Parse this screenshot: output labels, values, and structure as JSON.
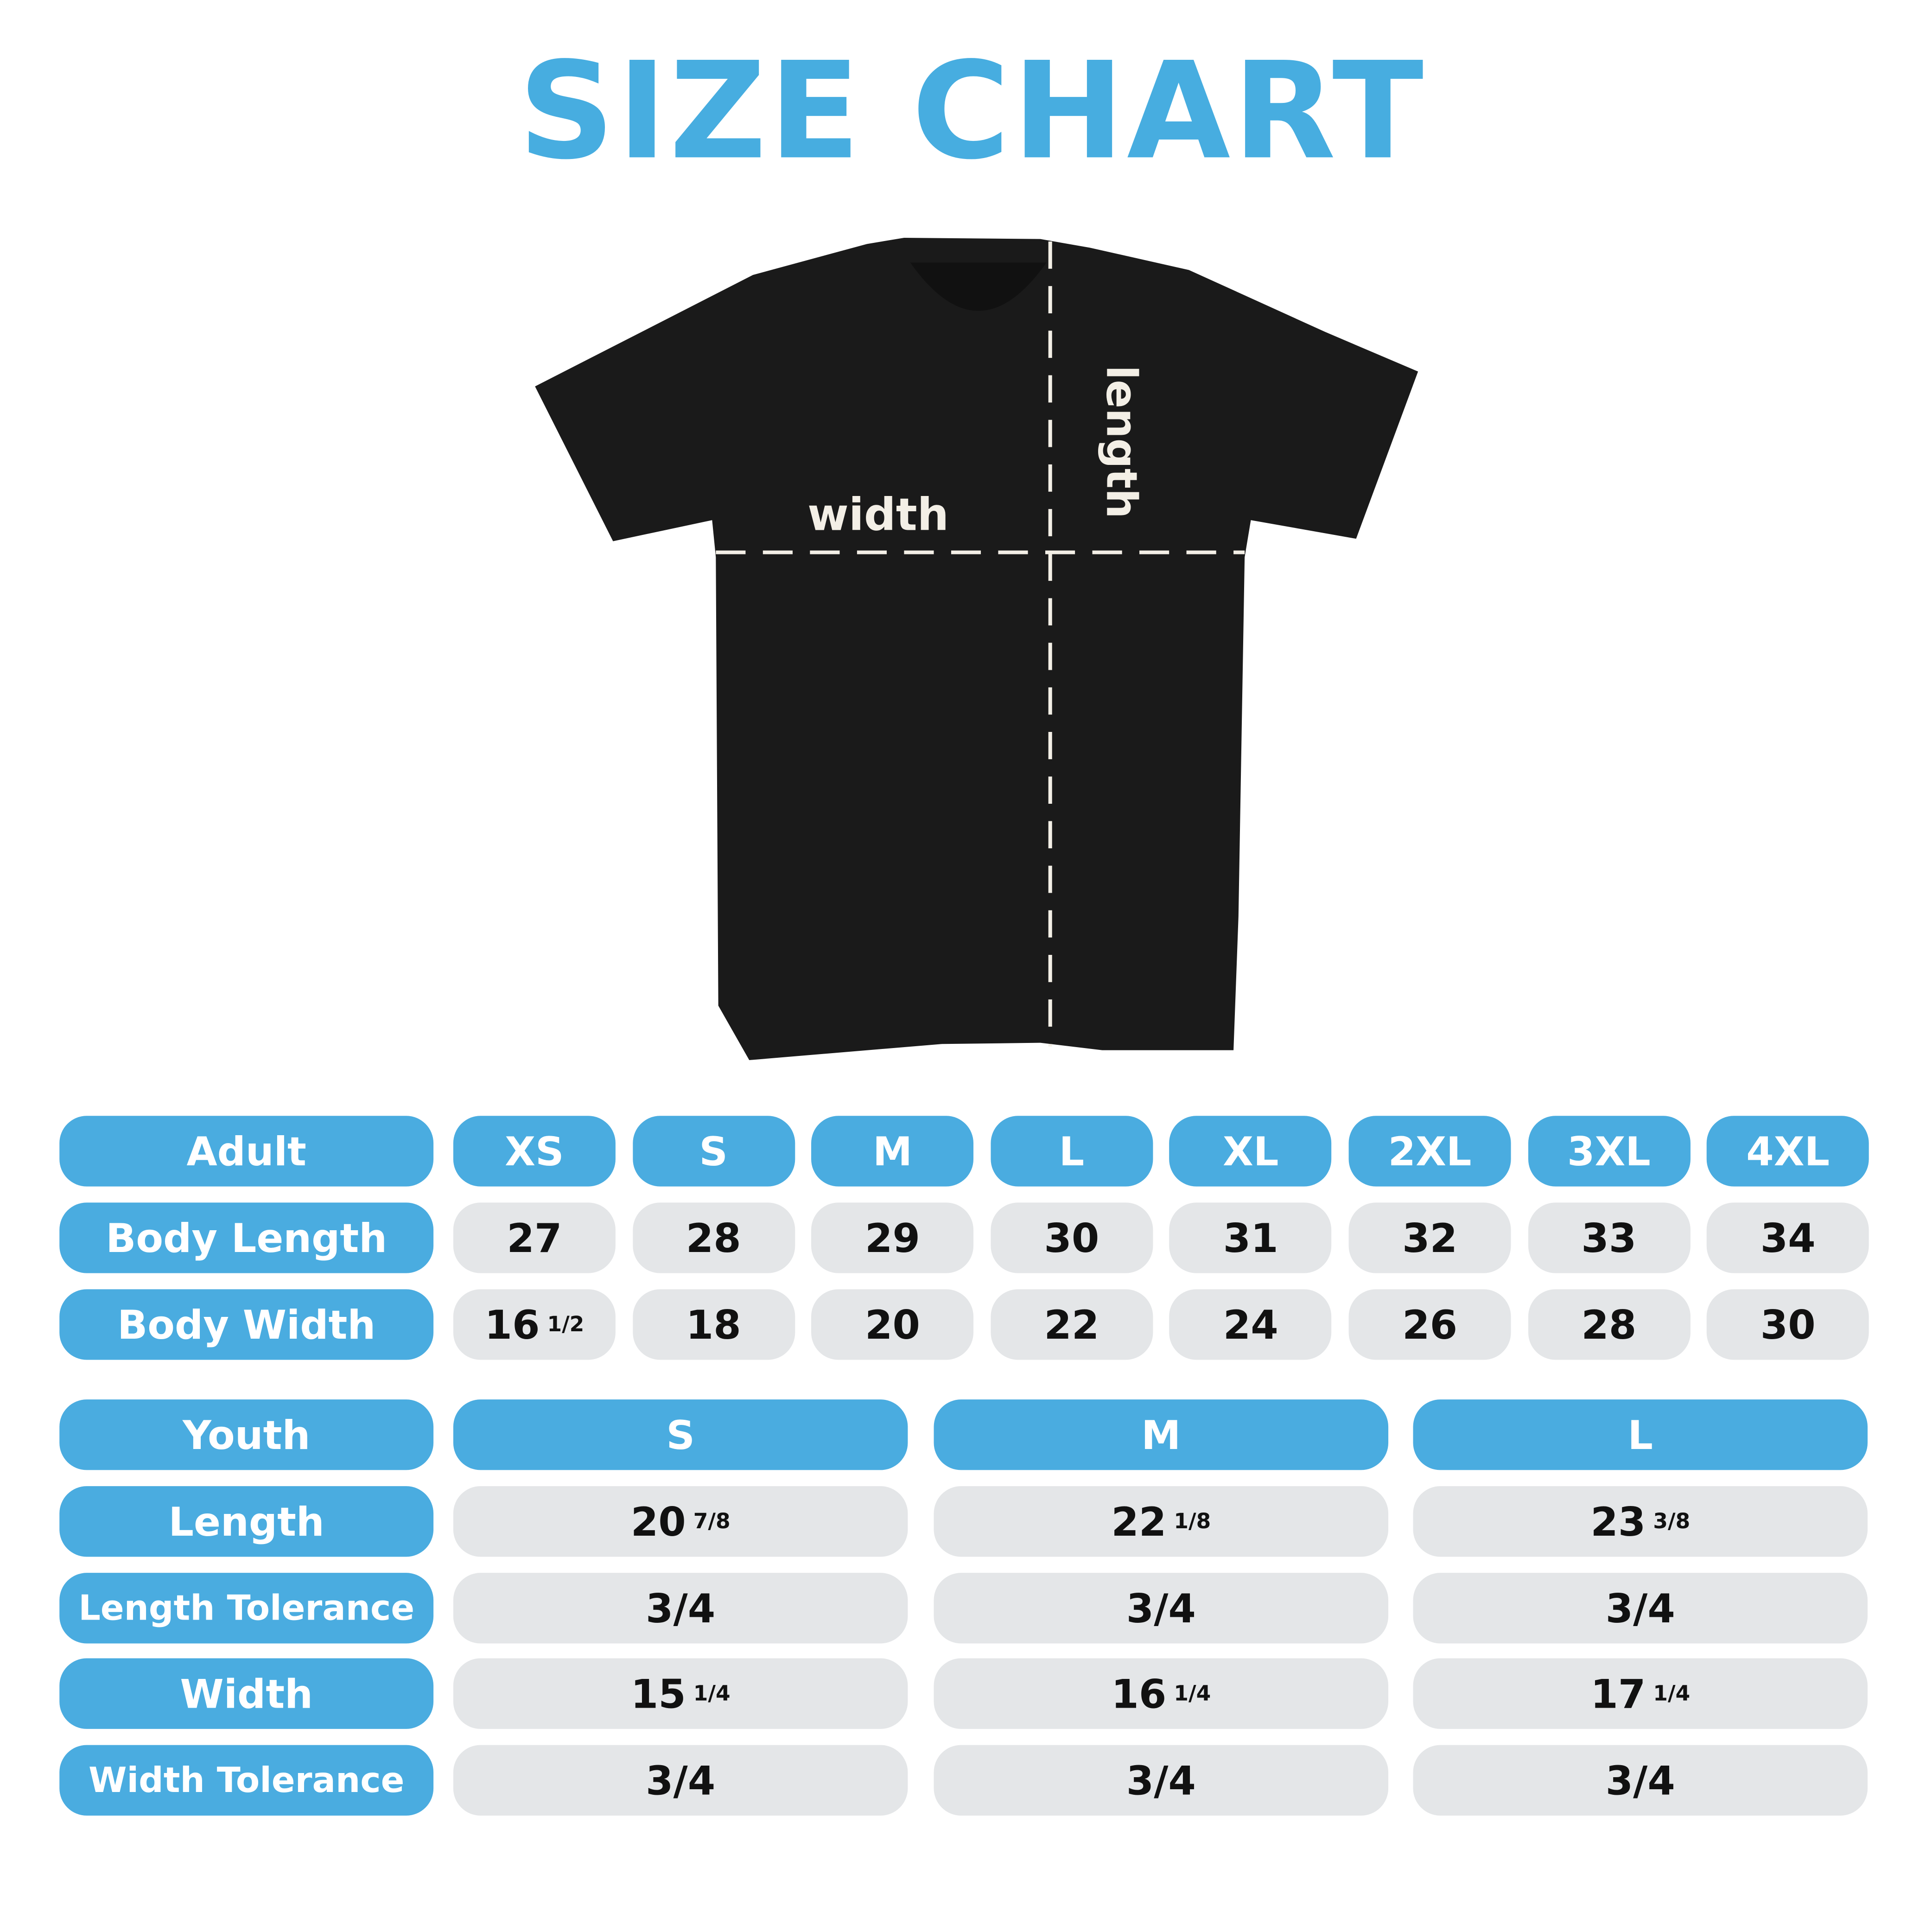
{
  "title": "SIZE CHART",
  "diagram": {
    "width_label": "width",
    "length_label": "length",
    "shirt_color": "#1a1a1a"
  },
  "colors": {
    "accent": "#4aace0",
    "cell": "#e4e6e8"
  },
  "adult": {
    "header": "Adult",
    "sizes": [
      "XS",
      "S",
      "M",
      "L",
      "XL",
      "2XL",
      "3XL",
      "4XL"
    ],
    "rows": [
      {
        "label": "Body Length",
        "values": [
          {
            "whole": "27",
            "frac": ""
          },
          {
            "whole": "28",
            "frac": ""
          },
          {
            "whole": "29",
            "frac": ""
          },
          {
            "whole": "30",
            "frac": ""
          },
          {
            "whole": "31",
            "frac": ""
          },
          {
            "whole": "32",
            "frac": ""
          },
          {
            "whole": "33",
            "frac": ""
          },
          {
            "whole": "34",
            "frac": ""
          }
        ]
      },
      {
        "label": "Body Width",
        "values": [
          {
            "whole": "16",
            "frac": "1/2"
          },
          {
            "whole": "18",
            "frac": ""
          },
          {
            "whole": "20",
            "frac": ""
          },
          {
            "whole": "22",
            "frac": ""
          },
          {
            "whole": "24",
            "frac": ""
          },
          {
            "whole": "26",
            "frac": ""
          },
          {
            "whole": "28",
            "frac": ""
          },
          {
            "whole": "30",
            "frac": ""
          }
        ]
      }
    ]
  },
  "youth": {
    "header": "Youth",
    "sizes": [
      "S",
      "M",
      "L"
    ],
    "rows": [
      {
        "label": "Length",
        "values": [
          {
            "whole": "20",
            "frac": "7/8"
          },
          {
            "whole": "22",
            "frac": "1/8"
          },
          {
            "whole": "23",
            "frac": "3/8"
          }
        ]
      },
      {
        "label": "Length Tolerance",
        "values": [
          {
            "whole": "3/4",
            "frac": ""
          },
          {
            "whole": "3/4",
            "frac": ""
          },
          {
            "whole": "3/4",
            "frac": ""
          }
        ]
      },
      {
        "label": "Width",
        "values": [
          {
            "whole": "15",
            "frac": "1/4"
          },
          {
            "whole": "16",
            "frac": "1/4"
          },
          {
            "whole": "17",
            "frac": "1/4"
          }
        ]
      },
      {
        "label": "Width Tolerance",
        "values": [
          {
            "whole": "3/4",
            "frac": ""
          },
          {
            "whole": "3/4",
            "frac": ""
          },
          {
            "whole": "3/4",
            "frac": ""
          }
        ]
      }
    ]
  }
}
